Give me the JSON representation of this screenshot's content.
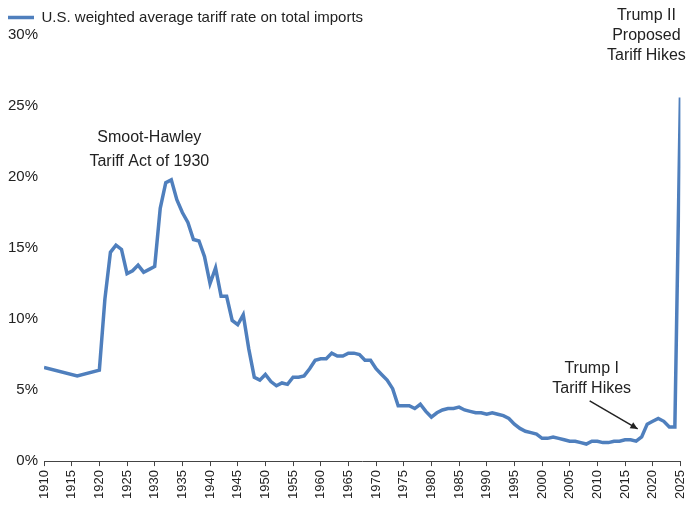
{
  "chart_data": {
    "type": "line",
    "legend": "top-left",
    "grid": false,
    "x": [
      1910,
      1916,
      1920,
      1921,
      1922,
      1923,
      1924,
      1925,
      1926,
      1927,
      1928,
      1929,
      1930,
      1931,
      1932,
      1933,
      1934,
      1935,
      1936,
      1937,
      1938,
      1939,
      1940,
      1941,
      1942,
      1943,
      1944,
      1945,
      1946,
      1947,
      1948,
      1949,
      1950,
      1951,
      1952,
      1953,
      1954,
      1955,
      1956,
      1957,
      1958,
      1959,
      1960,
      1961,
      1962,
      1963,
      1964,
      1965,
      1966,
      1967,
      1968,
      1969,
      1970,
      1971,
      1972,
      1973,
      1974,
      1975,
      1976,
      1977,
      1978,
      1979,
      1980,
      1981,
      1982,
      1983,
      1984,
      1985,
      1986,
      1987,
      1988,
      1989,
      1990,
      1991,
      1992,
      1993,
      1994,
      1995,
      1996,
      1997,
      1998,
      1999,
      2000,
      2001,
      2002,
      2003,
      2004,
      2005,
      2006,
      2007,
      2008,
      2009,
      2010,
      2011,
      2012,
      2013,
      2014,
      2015,
      2016,
      2017,
      2018,
      2019,
      2020,
      2021,
      2022,
      2023,
      2024,
      2025
    ],
    "series": [
      {
        "name": "U.S. weighted average tariff rate on total imports",
        "color": "#4f7fbd",
        "values": [
          6.6,
          6.0,
          6.4,
          11.4,
          14.7,
          15.2,
          14.9,
          13.2,
          13.4,
          13.8,
          13.3,
          13.5,
          13.7,
          17.8,
          19.6,
          19.8,
          18.4,
          17.5,
          16.8,
          15.6,
          15.5,
          14.4,
          12.5,
          13.6,
          11.6,
          11.6,
          9.9,
          9.6,
          10.3,
          7.9,
          5.9,
          5.7,
          6.1,
          5.6,
          5.3,
          5.5,
          5.4,
          5.9,
          5.9,
          6.0,
          6.5,
          7.1,
          7.2,
          7.2,
          7.6,
          7.4,
          7.4,
          7.6,
          7.6,
          7.5,
          7.1,
          7.1,
          6.5,
          6.1,
          5.7,
          5.1,
          3.9,
          3.9,
          3.9,
          3.7,
          4.0,
          3.5,
          3.1,
          3.4,
          3.6,
          3.7,
          3.7,
          3.8,
          3.6,
          3.5,
          3.4,
          3.4,
          3.3,
          3.4,
          3.3,
          3.2,
          3.0,
          2.6,
          2.3,
          2.1,
          2.0,
          1.9,
          1.6,
          1.6,
          1.7,
          1.6,
          1.5,
          1.4,
          1.4,
          1.3,
          1.2,
          1.4,
          1.4,
          1.3,
          1.3,
          1.4,
          1.4,
          1.5,
          1.5,
          1.4,
          1.7,
          2.6,
          2.8,
          3.0,
          2.8,
          2.4,
          2.4,
          25.6
        ]
      }
    ],
    "xlim": [
      1910,
      2025
    ],
    "xticks": [
      1910,
      1915,
      1920,
      1925,
      1930,
      1935,
      1940,
      1945,
      1950,
      1955,
      1960,
      1965,
      1970,
      1975,
      1980,
      1985,
      1990,
      1995,
      2000,
      2005,
      2010,
      2015,
      2020,
      2025
    ],
    "ylim": [
      0,
      30
    ],
    "yticks": [
      {
        "value": 0,
        "label": "0%"
      },
      {
        "value": 5,
        "label": "5%"
      },
      {
        "value": 10,
        "label": "10%"
      },
      {
        "value": 15,
        "label": "15%"
      },
      {
        "value": 20,
        "label": "20%"
      },
      {
        "value": 25,
        "label": "25%"
      },
      {
        "value": 30,
        "label": "30%"
      }
    ],
    "annotations": [
      {
        "text": [
          "Smoot-Hawley",
          "Tariff Act of 1930"
        ]
      },
      {
        "text": [
          "Trump I",
          "Tariff Hikes"
        ]
      },
      {
        "text": [
          "Trump II",
          "Proposed",
          "Tariff Hikes"
        ]
      }
    ]
  }
}
